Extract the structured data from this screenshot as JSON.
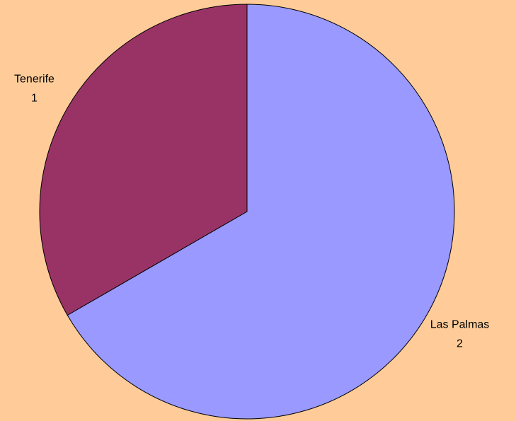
{
  "chart_data": {
    "type": "pie",
    "categories": [
      "Las Palmas",
      "Tenerife"
    ],
    "values": [
      2,
      1
    ],
    "colors": [
      "#9999ff",
      "#993366"
    ]
  }
}
